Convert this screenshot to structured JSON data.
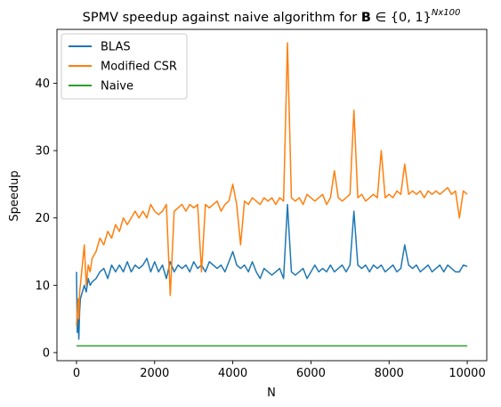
{
  "chart_data": {
    "type": "line",
    "title": "SPMV speedup against naive algorithm for B ∈ {0,1}^Nx100",
    "title_parts": {
      "prefix": "SPMV speedup against naive algorithm for ",
      "bold": "B",
      "middle": " ∈ {0, 1}",
      "superscript": "Nx100"
    },
    "xlabel": "N",
    "ylabel": "Speedup",
    "xlim": [
      -500,
      10500
    ],
    "ylim": [
      -1.2,
      48
    ],
    "xticks": [
      0,
      2000,
      4000,
      6000,
      8000,
      10000
    ],
    "yticks": [
      0,
      10,
      20,
      30,
      40
    ],
    "grid": false,
    "legend_position": "top-left",
    "series": [
      {
        "name": "BLAS",
        "color": "#1f77b4",
        "x": [
          0,
          20,
          40,
          60,
          80,
          100,
          150,
          200,
          250,
          300,
          350,
          400,
          500,
          600,
          700,
          800,
          900,
          1000,
          1100,
          1200,
          1300,
          1400,
          1500,
          1600,
          1700,
          1800,
          1900,
          2000,
          2100,
          2200,
          2300,
          2400,
          2500,
          2600,
          2700,
          2800,
          2900,
          3000,
          3100,
          3200,
          3300,
          3400,
          3500,
          3600,
          3700,
          3800,
          3900,
          4000,
          4100,
          4200,
          4300,
          4400,
          4500,
          4600,
          4700,
          4800,
          4900,
          5000,
          5100,
          5200,
          5300,
          5400,
          5500,
          5600,
          5700,
          5800,
          5900,
          6000,
          6100,
          6200,
          6300,
          6400,
          6500,
          6600,
          6700,
          6800,
          6900,
          7000,
          7100,
          7200,
          7300,
          7400,
          7500,
          7600,
          7700,
          7800,
          7900,
          8000,
          8100,
          8200,
          8300,
          8400,
          8500,
          8600,
          8700,
          8800,
          8900,
          9000,
          9100,
          9200,
          9300,
          9400,
          9500,
          9600,
          9700,
          9800,
          9900,
          10000
        ],
        "values": [
          12,
          3,
          5,
          2,
          6,
          8,
          9,
          10,
          9,
          11,
          10,
          10.5,
          11,
          12,
          12.5,
          11,
          13,
          12,
          13,
          12,
          13.5,
          12,
          13,
          12.5,
          13,
          14,
          12,
          13.5,
          12,
          13,
          11,
          13.5,
          12,
          13,
          12.5,
          13,
          12,
          13.5,
          12.5,
          13,
          12,
          13.5,
          13,
          12.5,
          13,
          12,
          13.5,
          15,
          13,
          12.5,
          13,
          12,
          13.5,
          12,
          11,
          12.5,
          12,
          11.5,
          12,
          12.5,
          11,
          22,
          12,
          11.5,
          12,
          12.5,
          11,
          12,
          13,
          12,
          12.5,
          12,
          13,
          12,
          12.5,
          13,
          12,
          13,
          21,
          13,
          12.5,
          13,
          12,
          13,
          12.5,
          13,
          12,
          12.5,
          13,
          12,
          12.5,
          16,
          13,
          12.5,
          13,
          12,
          12.5,
          13,
          12,
          12.5,
          13,
          12,
          13,
          12.5,
          12,
          12,
          13,
          12.8
        ]
      },
      {
        "name": "Modified CSR",
        "color": "#ff7f0e",
        "x": [
          0,
          20,
          40,
          60,
          80,
          100,
          150,
          200,
          250,
          300,
          350,
          400,
          500,
          600,
          700,
          800,
          900,
          1000,
          1100,
          1200,
          1300,
          1400,
          1500,
          1600,
          1700,
          1800,
          1900,
          2000,
          2100,
          2200,
          2300,
          2400,
          2500,
          2600,
          2700,
          2800,
          2900,
          3000,
          3100,
          3200,
          3300,
          3400,
          3500,
          3600,
          3700,
          3800,
          3900,
          4000,
          4100,
          4200,
          4300,
          4400,
          4500,
          4600,
          4700,
          4800,
          4900,
          5000,
          5100,
          5200,
          5300,
          5400,
          5500,
          5600,
          5700,
          5800,
          5900,
          6000,
          6100,
          6200,
          6300,
          6400,
          6500,
          6600,
          6700,
          6800,
          6900,
          7000,
          7100,
          7200,
          7300,
          7400,
          7500,
          7600,
          7700,
          7800,
          7900,
          8000,
          8100,
          8200,
          8300,
          8400,
          8500,
          8600,
          8700,
          8800,
          8900,
          9000,
          9100,
          9200,
          9300,
          9400,
          9500,
          9600,
          9700,
          9800,
          9900,
          10000
        ],
        "values": [
          4,
          6,
          8,
          5,
          9,
          10,
          13,
          16,
          10,
          13,
          12,
          14,
          15,
          17,
          16,
          18,
          17,
          19,
          18,
          20,
          19,
          20,
          21,
          20,
          21,
          20,
          22,
          21,
          20.5,
          21,
          22,
          8.5,
          21,
          21.5,
          22,
          21,
          22,
          21.5,
          22,
          12,
          22,
          21.5,
          22,
          22.5,
          21,
          22,
          22.5,
          25,
          22,
          16,
          22.5,
          22,
          23,
          22.5,
          22,
          23,
          22.5,
          23,
          22,
          23,
          22.5,
          46,
          23,
          22.5,
          23,
          22,
          23.5,
          23,
          22.5,
          23,
          23.5,
          22,
          23,
          27,
          23,
          22.5,
          23,
          23.5,
          36,
          23,
          23.5,
          22.5,
          23,
          23.5,
          23,
          30,
          23,
          23.5,
          23,
          24,
          23.5,
          28,
          23.5,
          24,
          23.5,
          24,
          23,
          24,
          23.5,
          24,
          23.5,
          24,
          24.5,
          23.5,
          24,
          20,
          24,
          23.5
        ]
      },
      {
        "name": "Naive",
        "color": "#2ca02c",
        "x": [
          0,
          10000
        ],
        "values": [
          1,
          1
        ]
      }
    ]
  }
}
